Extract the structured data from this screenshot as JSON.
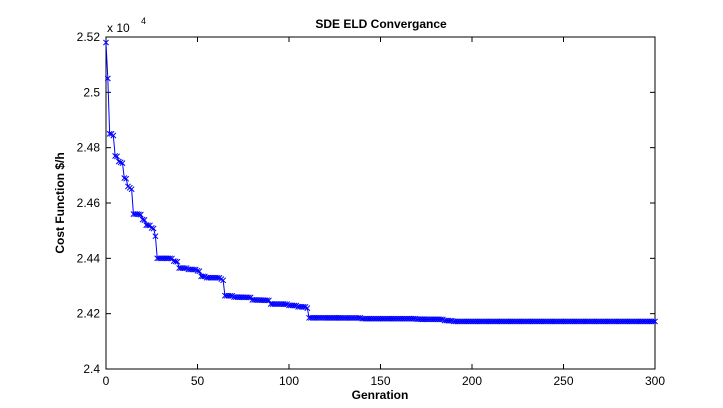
{
  "chart_data": {
    "type": "line",
    "title": "SDE ELD Convergance",
    "xlabel": "Genration",
    "ylabel": "Cost Function $/h",
    "xlim": [
      0,
      300
    ],
    "ylim": [
      2.4,
      2.52
    ],
    "x_ticks": [
      "0",
      "50",
      "100",
      "150",
      "200",
      "250",
      "300"
    ],
    "y_ticks": [
      "2.4",
      "2.42",
      "2.44",
      "2.46",
      "2.48",
      "2.5",
      "2.52"
    ],
    "y_exponent": {
      "base": "x 10",
      "power": "4"
    },
    "grid": false,
    "marker": "x",
    "line_color": "#0000ff",
    "series": [
      {
        "name": "SDE",
        "x": [
          0,
          1,
          2,
          3,
          5,
          7,
          10,
          12,
          15,
          17,
          20,
          22,
          25,
          27,
          28,
          35,
          37,
          40,
          45,
          50,
          52,
          55,
          60,
          63,
          65,
          70,
          80,
          90,
          100,
          105,
          110,
          111,
          140,
          170,
          185,
          190,
          300
        ],
        "y": [
          2.518,
          2.505,
          2.485,
          2.485,
          2.477,
          2.475,
          2.469,
          2.466,
          2.456,
          2.456,
          2.454,
          2.452,
          2.451,
          2.448,
          2.44,
          2.44,
          2.439,
          2.4365,
          2.436,
          2.4355,
          2.4335,
          2.433,
          2.433,
          2.4325,
          2.4265,
          2.426,
          2.425,
          2.4235,
          2.423,
          2.4225,
          2.422,
          2.4185,
          2.4182,
          2.418,
          2.4175,
          2.4172,
          2.4172
        ]
      }
    ]
  }
}
